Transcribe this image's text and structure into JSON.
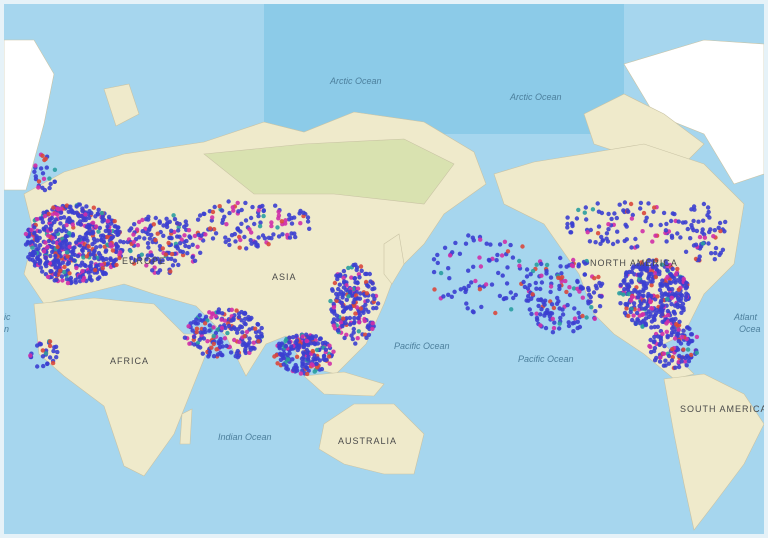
{
  "map": {
    "colors": {
      "ocean": "#a6d6ee",
      "deep_ocean": "#8ccbe8",
      "land": "#efeacb",
      "land_green": "#d9e2b0",
      "ice": "#ffffff",
      "point_primary": "#3b3fd0",
      "point_secondary": "#cf2fa8",
      "point_tertiary": "#d9483c",
      "point_quaternary": "#2a9ea0"
    },
    "labels": {
      "arctic_ocean_1": "Arctic Ocean",
      "arctic_ocean_2": "Arctic Ocean",
      "europe": "EUROPE",
      "asia": "ASIA",
      "africa": "AFRICA",
      "pacific_ocean_1": "Pacific Ocean",
      "pacific_ocean_2": "Pacific Ocean",
      "north_america": "NORTH AMERICA",
      "atlantic_ocean_left_1": "ic",
      "atlantic_ocean_left_2": "n",
      "atlantic_ocean_right_1": "Atlant",
      "atlantic_ocean_right_2": "Ocea",
      "south_america": "SOUTH AMERICA",
      "indian_ocean": "Indian Ocean",
      "australia": "AUSTRALIA"
    }
  }
}
